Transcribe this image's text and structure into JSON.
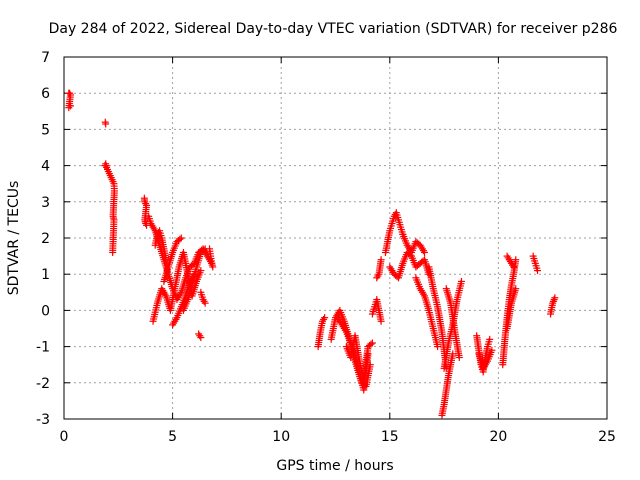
{
  "chart_data": {
    "type": "scatter",
    "title": "Day 284 of 2022, Sidereal Day-to-day VTEC variation (SDTVAR) for receiver p286",
    "xlabel": "GPS time / hours",
    "ylabel": "SDTVAR / TECUs",
    "xlim": [
      0,
      25
    ],
    "ylim": [
      -3,
      7
    ],
    "xticks": [
      0,
      5,
      10,
      15,
      20,
      25
    ],
    "yticks": [
      -3,
      -2,
      -1,
      0,
      1,
      2,
      3,
      4,
      5,
      6,
      7
    ],
    "xtick_labels": [
      "0",
      "5",
      "10",
      "15",
      "20",
      "25"
    ],
    "ytick_labels": [
      "-3",
      "-2",
      "-1",
      "0",
      "1",
      "2",
      "3",
      "4",
      "5",
      "6",
      "7"
    ],
    "grid": true,
    "marker": "+",
    "color": "#ff0000",
    "segments": [
      {
        "x": [
          0.22,
          0.26,
          0.3,
          0.22,
          0.3
        ],
        "y": [
          6.0,
          6.0,
          5.95,
          5.6,
          5.65
        ]
      },
      {
        "x": [
          1.9,
          1.92
        ],
        "y": [
          5.2,
          5.15
        ]
      },
      {
        "x": [
          1.88,
          1.92,
          1.96,
          2.3,
          2.32,
          2.26,
          2.3,
          2.24
        ],
        "y": [
          4.0,
          4.05,
          3.95,
          3.5,
          3.3,
          2.6,
          2.5,
          1.6
        ]
      },
      {
        "x": [
          3.7,
          3.72,
          3.8,
          3.72,
          3.76,
          3.8
        ],
        "y": [
          3.1,
          3.0,
          2.9,
          2.5,
          2.4,
          2.35
        ]
      },
      {
        "x": [
          3.9,
          4.0,
          4.2,
          4.4,
          4.6,
          4.8,
          5.0,
          5.2,
          5.4,
          5.6,
          5.8,
          6.0,
          6.2,
          6.4,
          6.6,
          6.8
        ],
        "y": [
          2.6,
          2.4,
          2.2,
          1.8,
          1.4,
          1.0,
          0.6,
          0.3,
          0.5,
          0.9,
          1.2,
          1.3,
          1.6,
          1.7,
          1.5,
          1.3
        ]
      },
      {
        "x": [
          4.1,
          4.3,
          4.5,
          4.7,
          4.9,
          5.1,
          5.3,
          5.5,
          5.7,
          5.9,
          6.1,
          6.3
        ],
        "y": [
          -0.3,
          0.2,
          0.6,
          0.4,
          0.0,
          0.6,
          1.2,
          1.6,
          1.0,
          0.4,
          0.8,
          1.1
        ]
      },
      {
        "x": [
          4.2,
          4.3,
          4.4,
          4.5,
          4.6,
          4.7
        ],
        "y": [
          1.8,
          2.1,
          2.2,
          2.0,
          1.7,
          1.4
        ]
      },
      {
        "x": [
          4.6,
          4.8,
          5.0,
          5.2,
          5.4
        ],
        "y": [
          0.8,
          1.2,
          1.6,
          1.9,
          2.0
        ]
      },
      {
        "x": [
          5.0,
          5.2,
          5.4,
          5.6,
          5.8,
          6.0
        ],
        "y": [
          -0.4,
          -0.2,
          0.1,
          0.4,
          0.8,
          1.0
        ]
      },
      {
        "x": [
          5.5,
          5.7,
          5.9,
          6.1,
          6.3,
          6.5
        ],
        "y": [
          0.0,
          0.3,
          0.7,
          1.2,
          1.6,
          1.7
        ]
      },
      {
        "x": [
          6.2,
          6.3
        ],
        "y": [
          -0.65,
          -0.75
        ]
      },
      {
        "x": [
          6.3,
          6.4,
          6.5
        ],
        "y": [
          0.5,
          0.3,
          0.2
        ]
      },
      {
        "x": [
          6.7,
          6.75,
          6.8,
          6.85
        ],
        "y": [
          1.7,
          1.5,
          1.3,
          1.2
        ]
      },
      {
        "x": [
          11.7,
          11.8,
          11.9,
          12.0
        ],
        "y": [
          -1.0,
          -0.6,
          -0.3,
          -0.2
        ]
      },
      {
        "x": [
          12.3,
          12.5,
          12.7,
          12.9,
          13.1,
          13.3,
          13.5,
          13.7,
          13.9,
          14.1
        ],
        "y": [
          -0.8,
          -0.2,
          0.0,
          -0.3,
          -0.7,
          -1.2,
          -1.6,
          -2.0,
          -2.1,
          -1.5
        ]
      },
      {
        "x": [
          12.6,
          12.8,
          13.0,
          13.2,
          13.4,
          13.6,
          13.8,
          14.0
        ],
        "y": [
          -0.2,
          -0.4,
          -0.6,
          -0.9,
          -1.3,
          -1.7,
          -2.2,
          -1.2
        ]
      },
      {
        "x": [
          13.0,
          13.2,
          13.4,
          13.6,
          13.8,
          14.0,
          14.2
        ],
        "y": [
          -1.0,
          -1.3,
          -0.7,
          -1.4,
          -1.9,
          -1.0,
          -0.9
        ]
      },
      {
        "x": [
          14.2,
          14.3,
          14.4,
          14.5,
          14.6
        ],
        "y": [
          -0.1,
          0.1,
          0.3,
          0.0,
          -0.3
        ]
      },
      {
        "x": [
          14.4,
          14.5,
          14.6
        ],
        "y": [
          0.9,
          1.0,
          1.4
        ]
      },
      {
        "x": [
          14.8,
          14.9,
          15.0,
          15.1,
          15.2,
          15.3,
          15.4,
          15.5,
          15.6
        ],
        "y": [
          1.6,
          1.9,
          2.2,
          2.4,
          2.6,
          2.7,
          2.5,
          2.3,
          2.1
        ]
      },
      {
        "x": [
          15.0,
          15.2,
          15.4,
          15.6,
          15.8,
          16.0,
          16.2,
          16.4,
          16.6,
          16.8
        ],
        "y": [
          1.2,
          1.0,
          0.9,
          1.3,
          1.6,
          1.5,
          1.2,
          1.3,
          1.4,
          1.0
        ]
      },
      {
        "x": [
          15.6,
          15.8,
          16.0,
          16.2,
          16.4,
          16.6
        ],
        "y": [
          2.1,
          1.8,
          1.6,
          1.9,
          1.8,
          1.6
        ]
      },
      {
        "x": [
          16.2,
          16.4,
          16.6,
          16.8,
          17.0,
          17.2
        ],
        "y": [
          0.9,
          0.6,
          0.4,
          0.0,
          -0.5,
          -1.0
        ]
      },
      {
        "x": [
          16.8,
          17.0,
          17.2,
          17.4,
          17.6
        ],
        "y": [
          1.2,
          0.6,
          0.1,
          -0.6,
          -1.6
        ]
      },
      {
        "x": [
          17.4,
          17.5,
          17.6,
          17.7,
          17.8,
          17.9
        ],
        "y": [
          -2.9,
          -2.6,
          -2.2,
          -1.8,
          -1.5,
          -1.2
        ]
      },
      {
        "x": [
          17.5,
          17.7,
          17.9,
          18.1,
          18.3
        ],
        "y": [
          -1.6,
          -0.9,
          -0.4,
          0.3,
          0.8
        ]
      },
      {
        "x": [
          17.6,
          17.8,
          18.0,
          18.2
        ],
        "y": [
          0.6,
          0.2,
          -0.6,
          -1.3
        ]
      },
      {
        "x": [
          19.0,
          19.1,
          19.2,
          19.3,
          19.4,
          19.5,
          19.6
        ],
        "y": [
          -0.7,
          -1.1,
          -1.5,
          -1.7,
          -1.3,
          -1.0,
          -0.8
        ]
      },
      {
        "x": [
          19.1,
          19.3,
          19.5,
          19.7
        ],
        "y": [
          -1.2,
          -1.6,
          -1.4,
          -1.1
        ]
      },
      {
        "x": [
          20.2,
          20.3,
          20.4,
          20.5,
          20.6,
          20.7,
          20.8
        ],
        "y": [
          -1.5,
          -0.8,
          -0.2,
          0.3,
          0.7,
          1.0,
          1.4
        ]
      },
      {
        "x": [
          20.4,
          20.5,
          20.6,
          20.7
        ],
        "y": [
          1.5,
          1.4,
          1.3,
          1.2
        ]
      },
      {
        "x": [
          20.4,
          20.6,
          20.8
        ],
        "y": [
          -0.5,
          0.2,
          0.6
        ]
      },
      {
        "x": [
          21.6,
          21.7,
          21.8
        ],
        "y": [
          1.5,
          1.3,
          1.1
        ]
      },
      {
        "x": [
          22.4,
          22.5,
          22.6
        ],
        "y": [
          -0.1,
          0.2,
          0.35
        ]
      }
    ]
  }
}
